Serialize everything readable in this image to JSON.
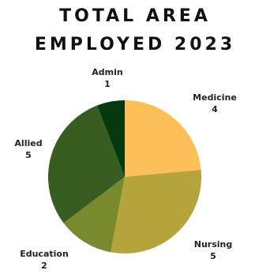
{
  "title": {
    "line1": "TOTAL AREA",
    "line2": "EMPLOYED 2023"
  },
  "chart_data": {
    "type": "pie",
    "title": "TOTAL AREA EMPLOYED 2023",
    "slices": [
      {
        "label": "Medicine",
        "value": 4,
        "color": "#fdbf57"
      },
      {
        "label": "Nursing",
        "value": 5,
        "color": "#b5a33b"
      },
      {
        "label": "Education",
        "value": 2,
        "color": "#788a2d"
      },
      {
        "label": "Allied",
        "value": 5,
        "color": "#375d20"
      },
      {
        "label": "Admin",
        "value": 1,
        "color": "#053a10"
      }
    ]
  }
}
